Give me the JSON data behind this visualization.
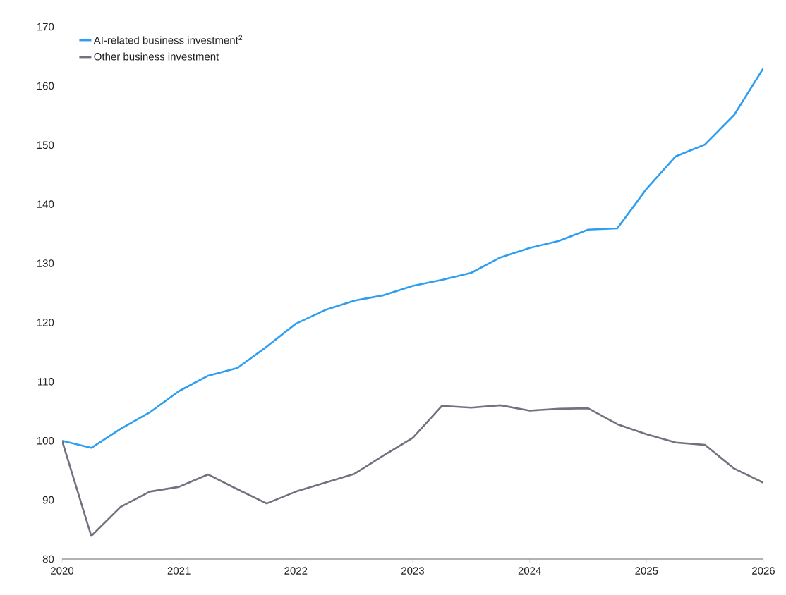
{
  "chart_data": {
    "type": "line",
    "x": [
      2020,
      2020.25,
      2020.5,
      2020.75,
      2021,
      2021.25,
      2021.5,
      2021.75,
      2022,
      2022.25,
      2022.5,
      2022.75,
      2023,
      2023.25,
      2023.5,
      2023.75,
      2024,
      2024.25,
      2024.5,
      2024.75,
      2025,
      2025.25,
      2025.5,
      2025.75,
      2026
    ],
    "series": [
      {
        "name": "AI-related business investment$^{2}$",
        "color": "#2e9ef0",
        "values": [
          100,
          98.8,
          102,
          104.8,
          108.4,
          111,
          112.3,
          115.9,
          119.8,
          122.1,
          123.7,
          124.6,
          126.2,
          127.2,
          128.4,
          131,
          132.6,
          133.8,
          135.7,
          135.9,
          142.6,
          148.1,
          150.1,
          155.1,
          163
        ]
      },
      {
        "name": "Other business investment",
        "color": "#74707f",
        "values": [
          100,
          83.9,
          88.8,
          91.4,
          92.2,
          94.3,
          91.8,
          89.4,
          91.4,
          92.9,
          94.4,
          97.5,
          100.5,
          105.9,
          105.6,
          106,
          105.1,
          105.4,
          105.5,
          102.8,
          101.1,
          99.7,
          99.3,
          95.3,
          92.9
        ]
      }
    ],
    "xlim": [
      2020,
      2026
    ],
    "xticks": [
      2020,
      2021,
      2022,
      2023,
      2024,
      2025,
      2026
    ],
    "ylim": [
      80,
      170
    ],
    "yticks": [
      80,
      90,
      100,
      110,
      120,
      130,
      140,
      150,
      160,
      170
    ],
    "grid": false,
    "legend": "top left",
    "marker": "none",
    "line_style": "solid"
  }
}
